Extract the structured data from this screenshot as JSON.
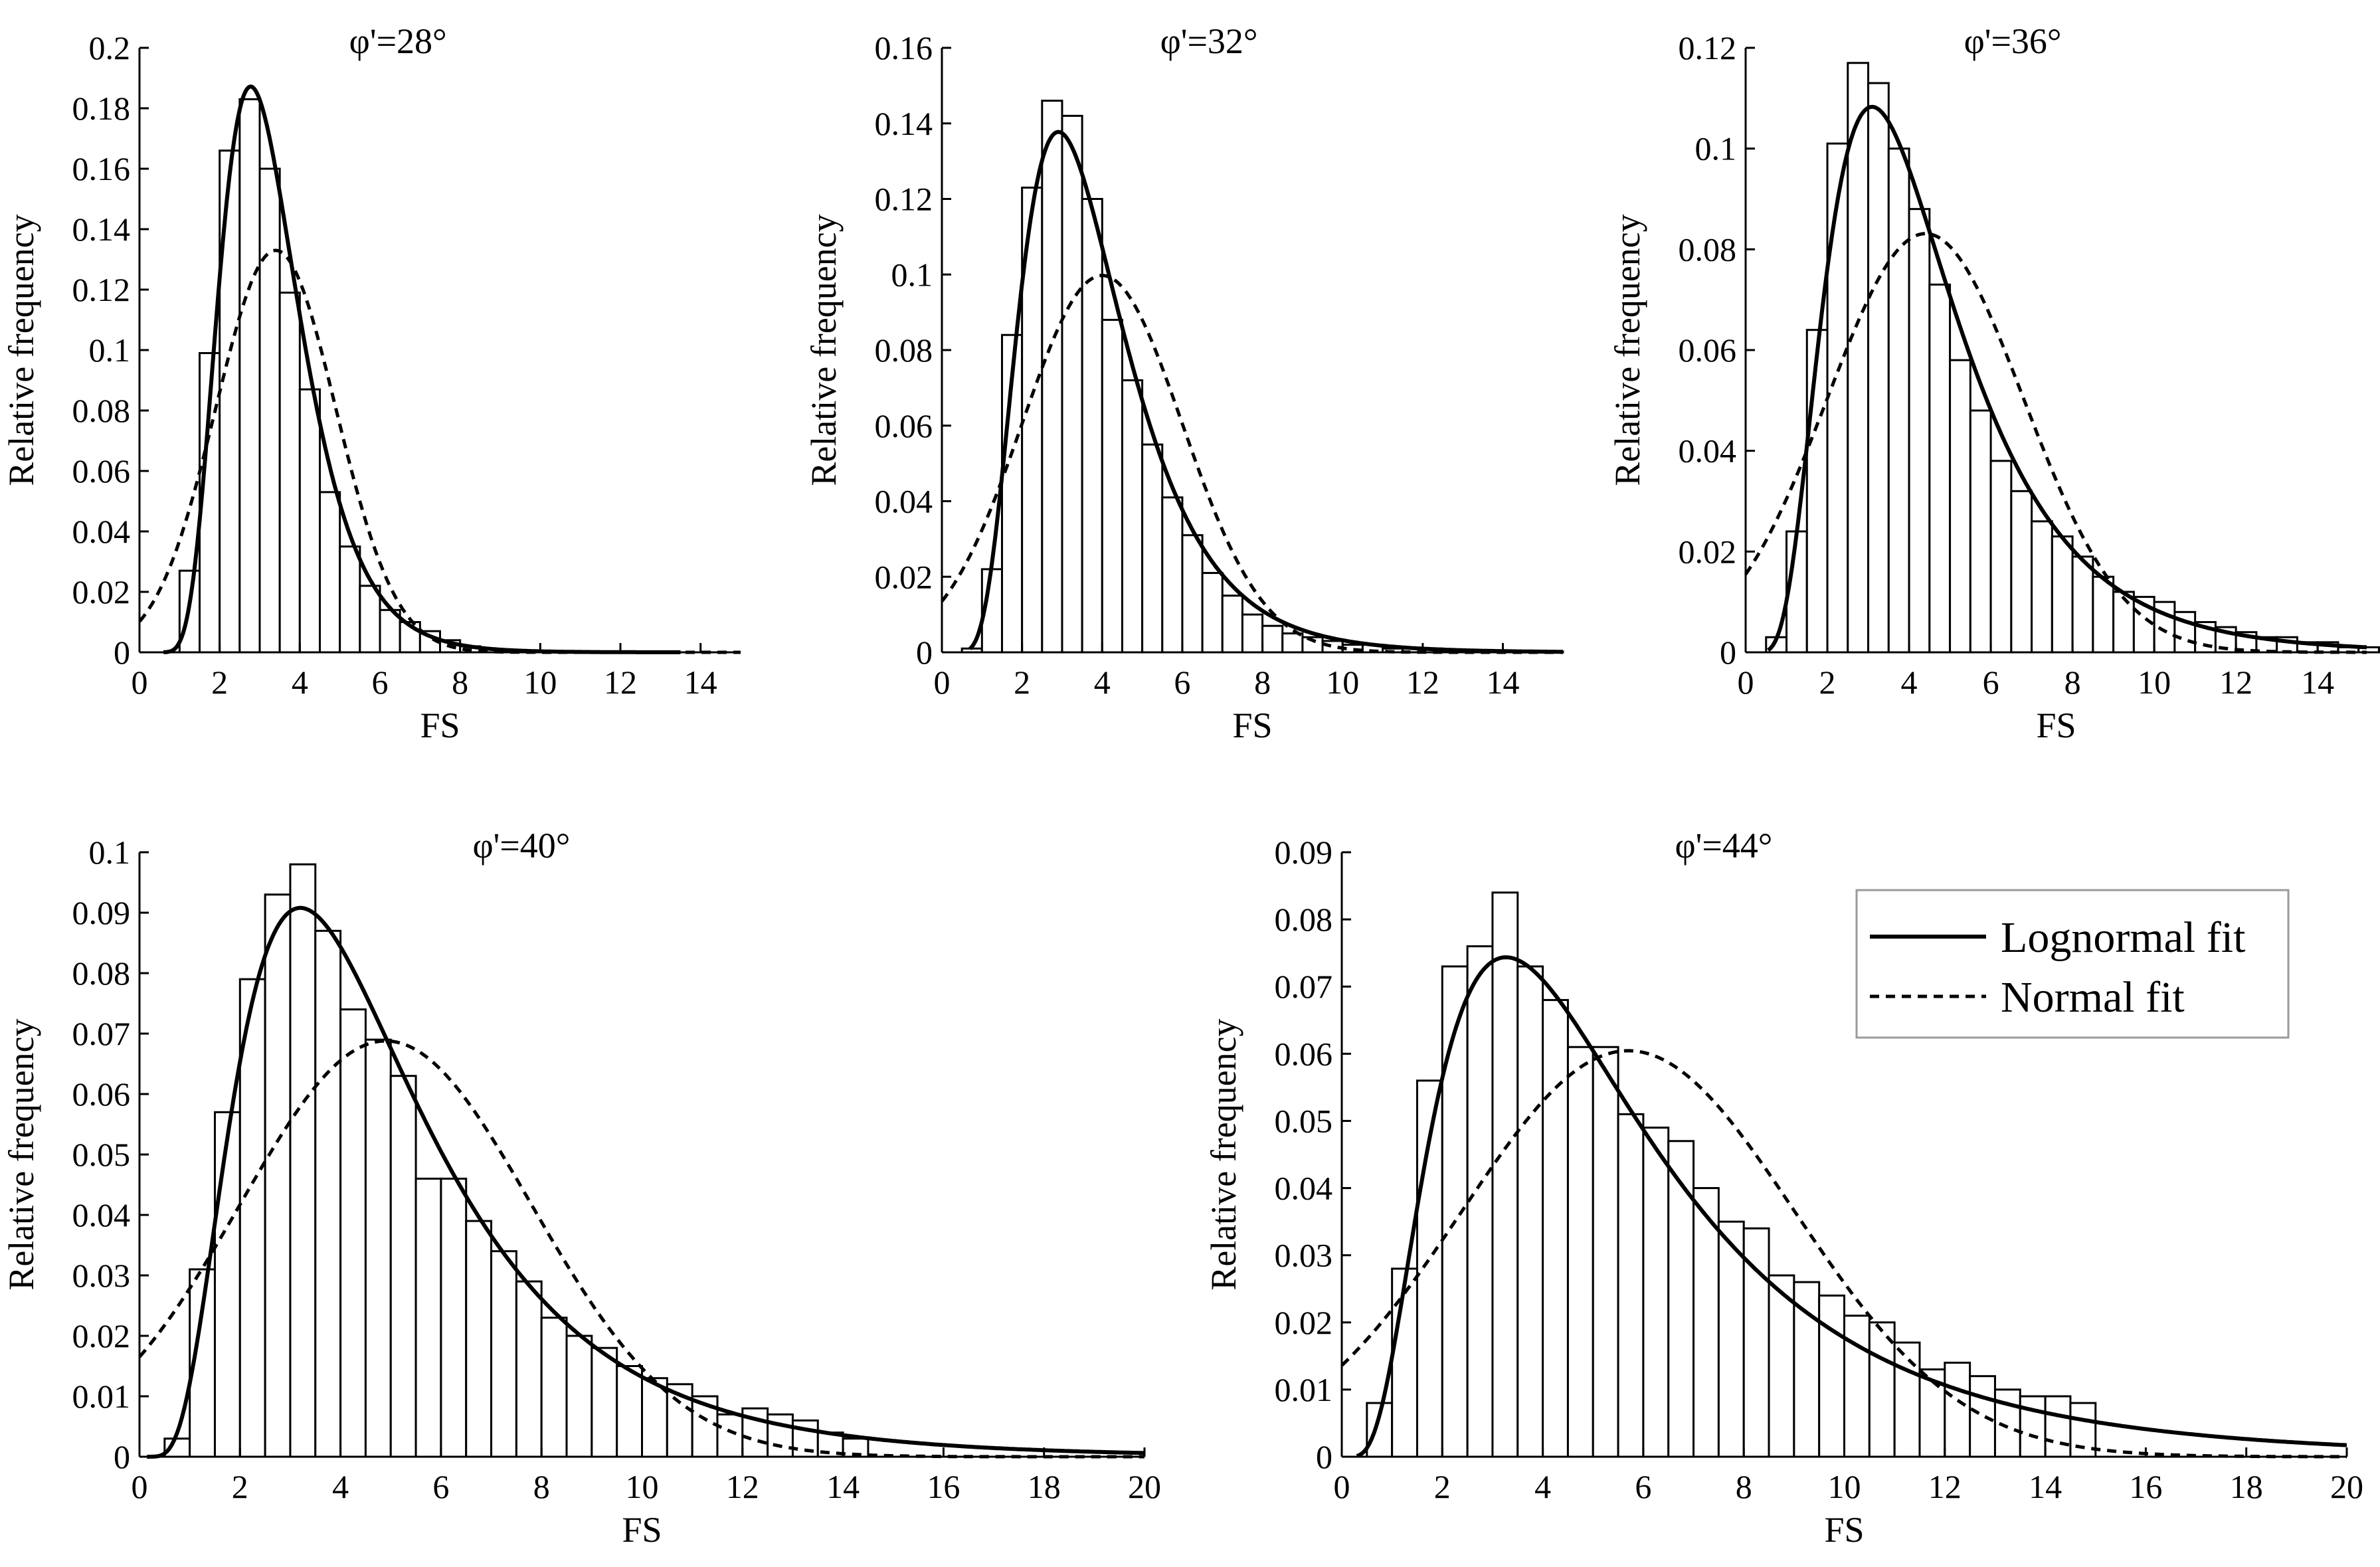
{
  "chart_data": [
    {
      "type": "bar",
      "title": "φ'=28°",
      "xlabel": "FS",
      "ylabel": "Relative frequency",
      "xlim": [
        0,
        15
      ],
      "ylim": [
        0,
        0.2
      ],
      "xticks": [
        0,
        2,
        4,
        6,
        8,
        10,
        12,
        14
      ],
      "xtick_labels": [
        "0",
        "2",
        "4",
        "6",
        "8",
        "10",
        "12",
        "14"
      ],
      "yticks": [
        0,
        0.02,
        0.04,
        0.06,
        0.08,
        0.1,
        0.12,
        0.14,
        0.16,
        0.18,
        0.2
      ],
      "ytick_labels": [
        "0",
        "0.02",
        "0.04",
        "0.06",
        "0.08",
        "0.1",
        "0.12",
        "0.14",
        "0.16",
        "0.18",
        "0.2"
      ],
      "bin_start": 1.0,
      "bin_width": 0.5,
      "values": [
        0.027,
        0.099,
        0.166,
        0.183,
        0.16,
        0.119,
        0.087,
        0.053,
        0.035,
        0.022,
        0.014,
        0.01,
        0.007,
        0.004,
        0.002,
        0.001,
        0.0005,
        0.0003,
        0.0002
      ],
      "lognormal_fit": {
        "mu": 1.15,
        "sigma": 0.36,
        "x_range": [
          0.6,
          13.5
        ]
      },
      "normal_fit": {
        "mean": 3.4,
        "sd": 1.5,
        "x_range": [
          0,
          15
        ]
      },
      "series": [
        {
          "name": "Lognormal fit",
          "style": "solid"
        },
        {
          "name": "Normal fit",
          "style": "dashed"
        }
      ]
    },
    {
      "type": "bar",
      "title": "φ'=32°",
      "xlabel": "FS",
      "ylabel": "Relative frequency",
      "xlim": [
        0,
        15.5
      ],
      "ylim": [
        0,
        0.16
      ],
      "xticks": [
        0,
        2,
        4,
        6,
        8,
        10,
        12,
        14
      ],
      "xtick_labels": [
        "0",
        "2",
        "4",
        "6",
        "8",
        "10",
        "12",
        "14"
      ],
      "yticks": [
        0,
        0.02,
        0.04,
        0.06,
        0.08,
        0.1,
        0.12,
        0.14,
        0.16
      ],
      "ytick_labels": [
        "0",
        "0.02",
        "0.04",
        "0.06",
        "0.08",
        "0.1",
        "0.12",
        "0.14",
        "0.16"
      ],
      "bin_start": 0.5,
      "bin_width": 0.5,
      "values": [
        0.001,
        0.022,
        0.084,
        0.123,
        0.146,
        0.142,
        0.12,
        0.088,
        0.072,
        0.055,
        0.041,
        0.031,
        0.021,
        0.015,
        0.01,
        0.007,
        0.005,
        0.004,
        0.003,
        0.002,
        0.002,
        0.001,
        0.001,
        0.001,
        0.0007,
        0.0005,
        0.0004,
        0.0003,
        0.0003,
        0.0002
      ],
      "lognormal_fit": {
        "mu": 1.27,
        "sigma": 0.45,
        "x_range": [
          0.7,
          15.5
        ]
      },
      "normal_fit": {
        "mean": 4.0,
        "sd": 2.0,
        "x_range": [
          0,
          15.5
        ]
      },
      "series": [
        {
          "name": "Lognormal fit",
          "style": "solid"
        },
        {
          "name": "Normal fit",
          "style": "dashed"
        }
      ]
    },
    {
      "type": "bar",
      "title": "φ'=36°",
      "xlabel": "FS",
      "ylabel": "Relative frequency",
      "xlim": [
        0,
        15.2
      ],
      "ylim": [
        0,
        0.12
      ],
      "xticks": [
        0,
        2,
        4,
        6,
        8,
        10,
        12,
        14
      ],
      "xtick_labels": [
        "0",
        "2",
        "4",
        "6",
        "8",
        "10",
        "12",
        "14"
      ],
      "yticks": [
        0,
        0.02,
        0.04,
        0.06,
        0.08,
        0.1,
        0.12
      ],
      "ytick_labels": [
        "0",
        "0.02",
        "0.04",
        "0.06",
        "0.08",
        "0.1",
        "0.12"
      ],
      "bin_start": 0.5,
      "bin_width": 0.5,
      "values": [
        0.003,
        0.024,
        0.064,
        0.101,
        0.117,
        0.113,
        0.1,
        0.088,
        0.073,
        0.058,
        0.048,
        0.038,
        0.032,
        0.026,
        0.023,
        0.019,
        0.015,
        0.012,
        0.011,
        0.01,
        0.008,
        0.006,
        0.005,
        0.004,
        0.003,
        0.003,
        0.002,
        0.002,
        0.001,
        0.001
      ],
      "lognormal_fit": {
        "mu": 1.4,
        "sigma": 0.52,
        "x_range": [
          0.55,
          15.2
        ]
      },
      "normal_fit": {
        "mean": 4.4,
        "sd": 2.4,
        "x_range": [
          0,
          15.2
        ]
      },
      "series": [
        {
          "name": "Lognormal fit",
          "style": "solid"
        },
        {
          "name": "Normal fit",
          "style": "dashed"
        }
      ]
    },
    {
      "type": "bar",
      "title": "φ'=40°",
      "xlabel": "FS",
      "ylabel": "Relative frequency",
      "xlim": [
        0,
        20
      ],
      "ylim": [
        0,
        0.1
      ],
      "xticks": [
        0,
        2,
        4,
        6,
        8,
        10,
        12,
        14,
        16,
        18,
        20
      ],
      "xtick_labels": [
        "0",
        "2",
        "4",
        "6",
        "8",
        "10",
        "12",
        "14",
        "16",
        "18",
        "20"
      ],
      "yticks": [
        0,
        0.01,
        0.02,
        0.03,
        0.04,
        0.05,
        0.06,
        0.07,
        0.08,
        0.09,
        0.1
      ],
      "ytick_labels": [
        "0",
        "0.01",
        "0.02",
        "0.03",
        "0.04",
        "0.05",
        "0.06",
        "0.07",
        "0.08",
        "0.09",
        "0.1"
      ],
      "bin_start": 0.5,
      "bin_width": 0.5,
      "values": [
        0.003,
        0.031,
        0.057,
        0.079,
        0.093,
        0.098,
        0.087,
        0.074,
        0.069,
        0.063,
        0.046,
        0.046,
        0.039,
        0.034,
        0.029,
        0.023,
        0.02,
        0.018,
        0.015,
        0.013,
        0.012,
        0.01,
        0.007,
        0.008,
        0.007,
        0.006,
        0.004,
        0.003
      ],
      "lognormal_fit": {
        "mu": 1.5,
        "sigma": 0.58,
        "x_range": [
          0.15,
          20
        ]
      },
      "normal_fit": {
        "mean": 4.9,
        "sd": 2.9,
        "x_range": [
          0,
          20
        ]
      },
      "series": [
        {
          "name": "Lognormal fit",
          "style": "solid"
        },
        {
          "name": "Normal fit",
          "style": "dashed"
        }
      ]
    },
    {
      "type": "bar",
      "title": "φ'=44°",
      "xlabel": "FS",
      "ylabel": "Relative frequency",
      "xlim": [
        0,
        20
      ],
      "ylim": [
        0,
        0.09
      ],
      "xticks": [
        0,
        2,
        4,
        6,
        8,
        10,
        12,
        14,
        16,
        18,
        20
      ],
      "xtick_labels": [
        "0",
        "2",
        "4",
        "6",
        "8",
        "10",
        "12",
        "14",
        "16",
        "18",
        "20"
      ],
      "yticks": [
        0,
        0.01,
        0.02,
        0.03,
        0.04,
        0.05,
        0.06,
        0.07,
        0.08,
        0.09
      ],
      "ytick_labels": [
        "0",
        "0.01",
        "0.02",
        "0.03",
        "0.04",
        "0.05",
        "0.06",
        "0.07",
        "0.08",
        "0.09"
      ],
      "bin_start": 0.5,
      "bin_width": 0.5,
      "values": [
        0.008,
        0.028,
        0.056,
        0.073,
        0.076,
        0.084,
        0.073,
        0.068,
        0.061,
        0.061,
        0.051,
        0.049,
        0.047,
        0.04,
        0.035,
        0.034,
        0.027,
        0.026,
        0.024,
        0.021,
        0.02,
        0.017,
        0.013,
        0.014,
        0.012,
        0.01,
        0.009,
        0.009,
        0.008
      ],
      "lognormal_fit": {
        "mu": 1.62,
        "sigma": 0.66,
        "x_range": [
          0.3,
          20
        ]
      },
      "normal_fit": {
        "mean": 5.7,
        "sd": 3.3,
        "x_range": [
          0,
          20
        ]
      },
      "series": [
        {
          "name": "Lognormal fit",
          "style": "solid"
        },
        {
          "name": "Normal fit",
          "style": "dashed"
        }
      ]
    }
  ],
  "legend": {
    "items": [
      "Lognormal fit",
      "Normal fit"
    ],
    "placement": "top-right of bottom-right panel"
  }
}
